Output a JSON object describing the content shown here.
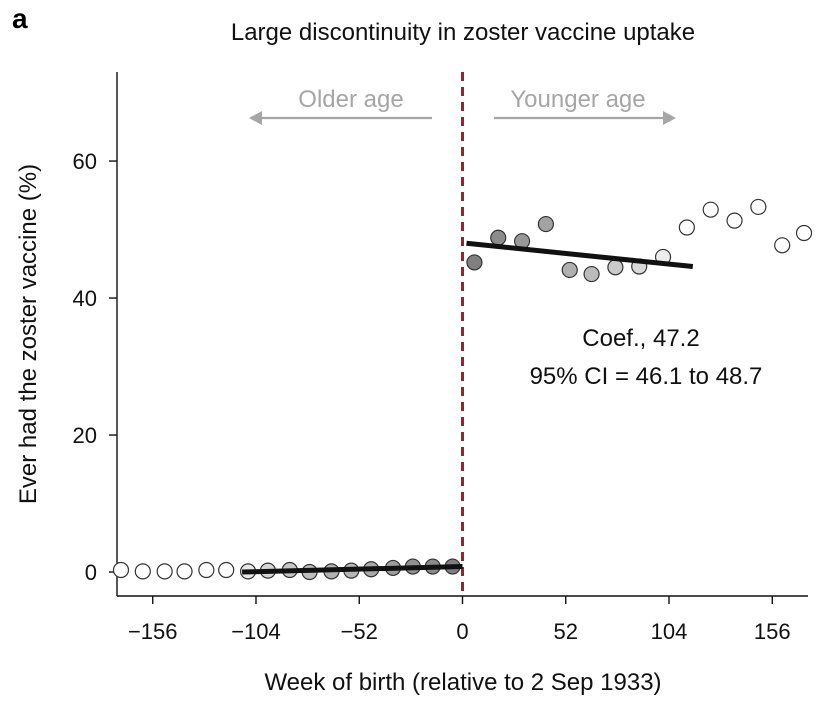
{
  "figure": {
    "panel_label": "a"
  },
  "chart_data": {
    "type": "scatter",
    "title": "Large discontinuity in zoster vaccine uptake",
    "xlabel": "Week of birth (relative to 2 Sep 1933)",
    "ylabel": "Ever had the zoster vaccine (%)",
    "xlim": [
      -174,
      174
    ],
    "ylim": [
      -3.5,
      73
    ],
    "x_ticks": [
      -156,
      -104,
      -52,
      0,
      52,
      104,
      156
    ],
    "x_tick_labels": [
      "−156",
      "−104",
      "−52",
      "0",
      "52",
      "104",
      "156"
    ],
    "y_ticks": [
      0,
      20,
      40,
      60
    ],
    "y_tick_labels": [
      "0",
      "20",
      "40",
      "60"
    ],
    "cutoff": {
      "x": 0,
      "color": "#a31f24",
      "style": "dashed"
    },
    "colors": {
      "fit_line": "#111111",
      "arrow": "#a6a6a6",
      "point_stroke": "#333333"
    },
    "points": [
      {
        "x": -172,
        "y": 0.3,
        "fill": "#ffffff"
      },
      {
        "x": -161,
        "y": 0.1,
        "fill": "#ffffff"
      },
      {
        "x": -150,
        "y": 0.1,
        "fill": "#ffffff"
      },
      {
        "x": -140,
        "y": 0.1,
        "fill": "#ffffff"
      },
      {
        "x": -129,
        "y": 0.3,
        "fill": "#ffffff"
      },
      {
        "x": -119,
        "y": 0.3,
        "fill": "#ffffff"
      },
      {
        "x": -108,
        "y": 0.1,
        "fill": "#e8e8e8"
      },
      {
        "x": -98,
        "y": 0.2,
        "fill": "#d6d6d6"
      },
      {
        "x": -87,
        "y": 0.3,
        "fill": "#c6c6c6"
      },
      {
        "x": -77,
        "y": 0.0,
        "fill": "#bdbdbd"
      },
      {
        "x": -66,
        "y": 0.1,
        "fill": "#b2b2b2"
      },
      {
        "x": -56,
        "y": 0.2,
        "fill": "#b5b5b5"
      },
      {
        "x": -46,
        "y": 0.4,
        "fill": "#a9a9a9"
      },
      {
        "x": -35,
        "y": 0.6,
        "fill": "#9e9e9e"
      },
      {
        "x": -25,
        "y": 0.8,
        "fill": "#929292"
      },
      {
        "x": -15,
        "y": 0.8,
        "fill": "#8a8a8a"
      },
      {
        "x": -5,
        "y": 0.8,
        "fill": "#808080"
      },
      {
        "x": 6,
        "y": 45.2,
        "fill": "#808080"
      },
      {
        "x": 18,
        "y": 48.8,
        "fill": "#8c8c8c"
      },
      {
        "x": 30,
        "y": 48.3,
        "fill": "#989898"
      },
      {
        "x": 42,
        "y": 50.8,
        "fill": "#a3a3a3"
      },
      {
        "x": 54,
        "y": 44.1,
        "fill": "#b0b0b0"
      },
      {
        "x": 65,
        "y": 43.5,
        "fill": "#bbbbbb"
      },
      {
        "x": 77,
        "y": 44.5,
        "fill": "#cacaca"
      },
      {
        "x": 89,
        "y": 44.6,
        "fill": "#d9d9d9"
      },
      {
        "x": 101,
        "y": 46.0,
        "fill": "#ececec"
      },
      {
        "x": 113,
        "y": 50.3,
        "fill": "#ffffff"
      },
      {
        "x": 125,
        "y": 52.9,
        "fill": "#ffffff"
      },
      {
        "x": 137,
        "y": 51.3,
        "fill": "#ffffff"
      },
      {
        "x": 149,
        "y": 53.3,
        "fill": "#ffffff"
      },
      {
        "x": 161,
        "y": 47.7,
        "fill": "#ffffff"
      },
      {
        "x": 172,
        "y": 49.5,
        "fill": "#ffffff"
      }
    ],
    "fit_left": {
      "x": [
        -111,
        0
      ],
      "y": [
        0.0,
        0.8
      ]
    },
    "fit_right": {
      "x": [
        2,
        116
      ],
      "y": [
        48.0,
        44.6
      ]
    },
    "annotations": {
      "coef": "Coef., 47.2",
      "ci": "95% CI = 46.1 to 48.7",
      "older": "Older age",
      "younger": "Younger age"
    }
  }
}
